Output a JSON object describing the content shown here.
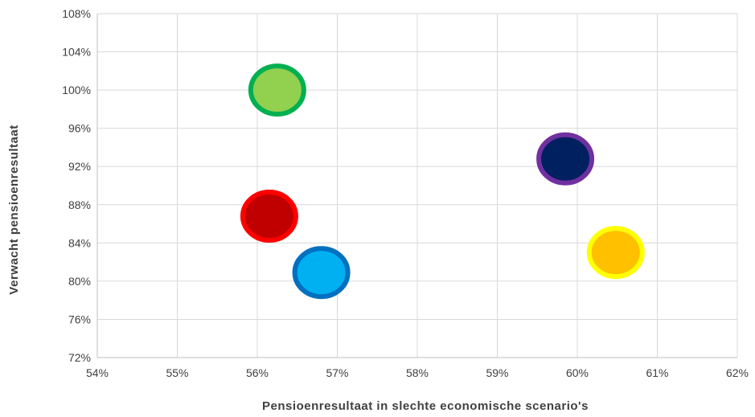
{
  "chart_data": {
    "type": "scatter",
    "title": "",
    "xlabel": "Pensioenresultaat in slechte economische scenario's",
    "ylabel": "Verwacht pensioenresultaat",
    "xlim": [
      54,
      62
    ],
    "ylim": [
      72,
      108
    ],
    "x_ticks": [
      54,
      55,
      56,
      57,
      58,
      59,
      60,
      61,
      62
    ],
    "y_ticks": [
      72,
      76,
      80,
      84,
      88,
      92,
      96,
      100,
      104,
      108
    ],
    "x_tick_labels": [
      "54%",
      "55%",
      "56%",
      "57%",
      "58%",
      "59%",
      "60%",
      "61%",
      "62%"
    ],
    "y_tick_labels": [
      "72%",
      "76%",
      "80%",
      "84%",
      "88%",
      "92%",
      "96%",
      "100%",
      "104%",
      "108%"
    ],
    "grid": true,
    "legend": "none",
    "points": [
      {
        "x": 56.25,
        "y": 100.0,
        "fill": "#92d050",
        "stroke": "#00b050"
      },
      {
        "x": 56.15,
        "y": 86.8,
        "fill": "#c00000",
        "stroke": "#ff0000"
      },
      {
        "x": 56.8,
        "y": 80.9,
        "fill": "#00b0f0",
        "stroke": "#0070c0"
      },
      {
        "x": 59.85,
        "y": 92.8,
        "fill": "#002060",
        "stroke": "#7030a0"
      },
      {
        "x": 60.48,
        "y": 83.0,
        "fill": "#ffc000",
        "stroke": "#ffff00"
      }
    ]
  }
}
